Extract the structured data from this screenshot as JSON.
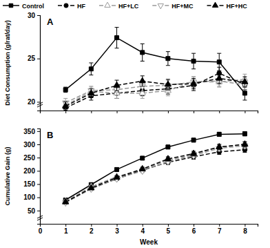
{
  "chart_data": [
    {
      "type": "line",
      "title": "A",
      "y_label": "Diet Consumption (g/rat/day)",
      "x": [
        1,
        2,
        3,
        4,
        5,
        6,
        7,
        8
      ],
      "xlim": [
        0,
        8.5
      ],
      "xticks": [
        0,
        1,
        2,
        3,
        4,
        5,
        6,
        7,
        8
      ],
      "ylim": [
        19,
        30
      ],
      "yticks": [
        20,
        25,
        30
      ],
      "tick_labels": "y",
      "legend": "top",
      "series": [
        {
          "name": "Control",
          "color": "#000000",
          "marker": "square",
          "line_style": "solid",
          "values": [
            21.4,
            23.8,
            27.4,
            25.7,
            25.0,
            24.7,
            24.6,
            21.0
          ],
          "errors": [
            0.3,
            0.7,
            1.2,
            1.0,
            0.8,
            0.9,
            1.0,
            0.8
          ]
        },
        {
          "name": "HF",
          "color": "#000000",
          "marker": "circle",
          "line_style": "dashed",
          "values": [
            19.3,
            20.7,
            21.0,
            21.3,
            21.5,
            21.9,
            23.3,
            22.0
          ],
          "errors": [
            0.5,
            0.5,
            0.6,
            0.6,
            0.6,
            0.6,
            0.7,
            0.6
          ]
        },
        {
          "name": "HF+LC",
          "color": "#999999",
          "marker": "open-triangle-up",
          "line_style": "dashed",
          "values": [
            19.6,
            21.2,
            21.0,
            21.0,
            21.3,
            22.3,
            22.3,
            22.6
          ],
          "errors": [
            0.5,
            0.5,
            0.6,
            0.6,
            0.6,
            0.6,
            0.6,
            0.6
          ]
        },
        {
          "name": "HF+MC",
          "color": "#999999",
          "marker": "open-triangle-down",
          "line_style": "dashed",
          "values": [
            19.9,
            21.3,
            21.4,
            21.8,
            21.9,
            22.3,
            22.4,
            22.0
          ],
          "errors": [
            0.5,
            0.5,
            0.6,
            0.6,
            0.6,
            0.6,
            0.6,
            0.6
          ]
        },
        {
          "name": "HF+HC",
          "color": "#000000",
          "marker": "triangle-up",
          "line_style": "dashed",
          "values": [
            19.5,
            21.0,
            21.9,
            22.4,
            22.0,
            22.1,
            22.7,
            22.3
          ],
          "errors": [
            0.5,
            0.5,
            0.6,
            0.6,
            0.6,
            0.6,
            0.6,
            0.6
          ]
        }
      ]
    },
    {
      "type": "line",
      "title": "B",
      "x_label": "Week",
      "y_label": "Cumulative Gain (g)",
      "x": [
        1,
        2,
        3,
        4,
        5,
        6,
        7,
        8
      ],
      "xlim": [
        0,
        8.5
      ],
      "xticks": [
        0,
        1,
        2,
        3,
        4,
        5,
        6,
        7,
        8
      ],
      "ylim": [
        0,
        360
      ],
      "yticks": [
        50,
        100,
        150,
        200,
        250,
        300,
        350
      ],
      "series": [
        {
          "name": "Control",
          "color": "#000000",
          "marker": "square",
          "line_style": "solid",
          "values": [
            90,
            148,
            205,
            248,
            290,
            316,
            338,
            340
          ],
          "errors": [
            4,
            5,
            6,
            6,
            7,
            7,
            8,
            8
          ]
        },
        {
          "name": "HF",
          "color": "#000000",
          "marker": "circle",
          "line_style": "dashed",
          "values": [
            82,
            133,
            170,
            203,
            232,
            253,
            272,
            280
          ],
          "errors": [
            4,
            5,
            6,
            7,
            8,
            9,
            10,
            10
          ]
        },
        {
          "name": "HF+LC",
          "color": "#999999",
          "marker": "open-triangle-up",
          "line_style": "dashed",
          "values": [
            85,
            140,
            178,
            205,
            240,
            262,
            290,
            300
          ],
          "errors": [
            4,
            5,
            6,
            7,
            8,
            9,
            10,
            10
          ]
        },
        {
          "name": "HF+MC",
          "color": "#999999",
          "marker": "open-triangle-down",
          "line_style": "dashed",
          "values": [
            80,
            132,
            170,
            200,
            235,
            258,
            285,
            295
          ],
          "errors": [
            4,
            5,
            6,
            7,
            8,
            9,
            10,
            10
          ]
        },
        {
          "name": "HF+HC",
          "color": "#000000",
          "marker": "triangle-up",
          "line_style": "dashed",
          "values": [
            82,
            135,
            175,
            207,
            245,
            265,
            290,
            300
          ],
          "errors": [
            4,
            5,
            6,
            7,
            8,
            9,
            10,
            10
          ]
        }
      ]
    }
  ]
}
